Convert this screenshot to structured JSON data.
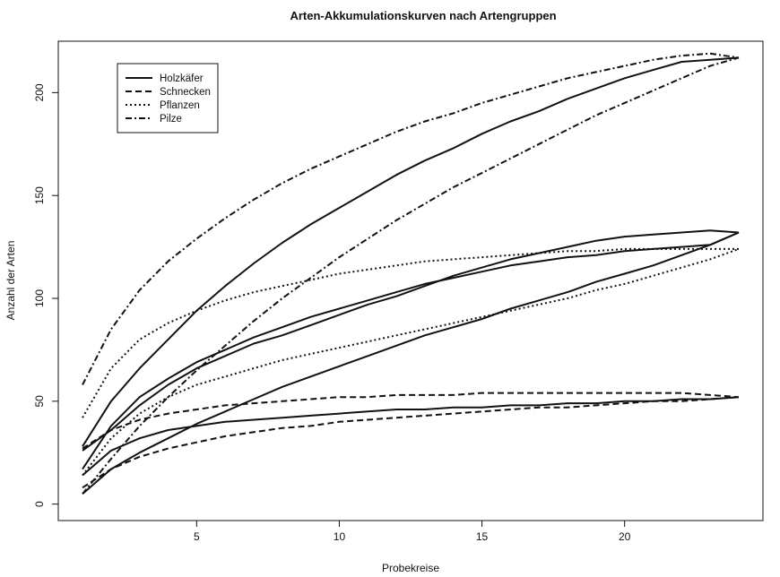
{
  "chart_data": {
    "type": "line",
    "title": "Arten-Akkumulationskurven nach Artengruppen",
    "xlabel": "Probekreise",
    "ylabel": "Anzahl der Arten",
    "xlim": [
      0.15,
      24.85
    ],
    "ylim": [
      -8,
      225
    ],
    "xticks": [
      5,
      10,
      15,
      20
    ],
    "yticks": [
      0,
      50,
      100,
      150,
      200
    ],
    "grid": false,
    "legend_position": "top-left",
    "legend": [
      {
        "label": "Holzkäfer",
        "style": "solid"
      },
      {
        "label": "Schnecken",
        "style": "dashed"
      },
      {
        "label": "Pflanzen",
        "style": "dotted"
      },
      {
        "label": "Pilze",
        "style": "dashdot"
      }
    ],
    "series": [
      {
        "name": "Holzkäfer",
        "style": "solid",
        "x": [
          1,
          2,
          3,
          4,
          5,
          6,
          7,
          8,
          9,
          10,
          11,
          12,
          13,
          14,
          15,
          16,
          17,
          18,
          19,
          20,
          21,
          22,
          23,
          24
        ],
        "values": [
          28,
          50,
          66,
          80,
          94,
          106,
          117,
          127,
          136,
          144,
          152,
          160,
          167,
          173,
          180,
          186,
          191,
          197,
          202,
          207,
          211,
          215,
          216,
          217
        ]
      },
      {
        "name": "",
        "style": "solid",
        "x": [
          1,
          2,
          3,
          4,
          5,
          6,
          7,
          8,
          9,
          10,
          11,
          12,
          13,
          14,
          15,
          16,
          17,
          18,
          19,
          20,
          21,
          22,
          23,
          24
        ],
        "values": [
          17,
          38,
          52,
          61,
          69,
          75,
          81,
          86,
          91,
          95,
          99,
          103,
          107,
          110,
          113,
          116,
          118,
          120,
          121,
          123,
          124,
          125,
          126,
          132
        ]
      },
      {
        "name": "",
        "style": "solid",
        "x": [
          1,
          2,
          3,
          4,
          5,
          6,
          7,
          8,
          9,
          10,
          11,
          12,
          13,
          14,
          15,
          16,
          17,
          18,
          19,
          20,
          21,
          22,
          23,
          24
        ],
        "values": [
          26,
          36,
          48,
          58,
          66,
          72,
          78,
          82,
          87,
          92,
          97,
          101,
          106,
          111,
          115,
          119,
          122,
          125,
          128,
          130,
          131,
          132,
          133,
          132
        ]
      },
      {
        "name": "",
        "style": "solid",
        "x": [
          1,
          2,
          3,
          4,
          5,
          6,
          7,
          8,
          9,
          10,
          11,
          12,
          13,
          14,
          15,
          16,
          17,
          18,
          19,
          20,
          21,
          22,
          23,
          24
        ],
        "values": [
          14,
          26,
          32,
          36,
          38,
          40,
          41,
          42,
          43,
          44,
          45,
          46,
          46,
          47,
          47,
          48,
          48,
          49,
          49,
          50,
          50,
          51,
          51,
          52
        ]
      },
      {
        "name": "",
        "style": "solid",
        "x": [
          1,
          2,
          3,
          4,
          5,
          6,
          7,
          8,
          9,
          10,
          11,
          12,
          13,
          14,
          15,
          16,
          17,
          18,
          19,
          20,
          21,
          22,
          23,
          24
        ],
        "values": [
          5,
          17,
          25,
          32,
          39,
          45,
          51,
          57,
          62,
          67,
          72,
          77,
          82,
          86,
          90,
          95,
          99,
          103,
          108,
          112,
          116,
          121,
          126,
          132
        ]
      },
      {
        "name": "Schnecken",
        "style": "dashed",
        "x": [
          1,
          2,
          3,
          4,
          5,
          6,
          7,
          8,
          9,
          10,
          11,
          12,
          13,
          14,
          15,
          16,
          17,
          18,
          19,
          20,
          21,
          22,
          23,
          24
        ],
        "values": [
          27,
          36,
          41,
          44,
          46,
          48,
          49,
          50,
          51,
          52,
          52,
          53,
          53,
          53,
          54,
          54,
          54,
          54,
          54,
          54,
          54,
          54,
          53,
          52
        ]
      },
      {
        "name": "",
        "style": "dashed",
        "x": [
          1,
          2,
          3,
          4,
          5,
          6,
          7,
          8,
          9,
          10,
          11,
          12,
          13,
          14,
          15,
          16,
          17,
          18,
          19,
          20,
          21,
          22,
          23,
          24
        ],
        "values": [
          8,
          17,
          23,
          27,
          30,
          33,
          35,
          37,
          38,
          40,
          41,
          42,
          43,
          44,
          45,
          46,
          47,
          47,
          48,
          49,
          50,
          50,
          51,
          52
        ]
      },
      {
        "name": "Pflanzen",
        "style": "dotted",
        "x": [
          1,
          2,
          3,
          4,
          5,
          6,
          7,
          8,
          9,
          10,
          11,
          12,
          13,
          14,
          15,
          16,
          17,
          18,
          19,
          20,
          21,
          22,
          23,
          24
        ],
        "values": [
          42,
          66,
          80,
          88,
          94,
          99,
          103,
          106,
          109,
          112,
          114,
          116,
          118,
          119,
          120,
          121,
          122,
          123,
          123,
          124,
          124,
          124,
          124,
          124
        ]
      },
      {
        "name": "",
        "style": "dotted",
        "x": [
          1,
          2,
          3,
          4,
          5,
          6,
          7,
          8,
          9,
          10,
          11,
          12,
          13,
          14,
          15,
          16,
          17,
          18,
          19,
          20,
          21,
          22,
          23,
          24
        ],
        "values": [
          14,
          32,
          44,
          52,
          58,
          62,
          66,
          70,
          73,
          76,
          79,
          82,
          85,
          88,
          91,
          94,
          97,
          100,
          104,
          107,
          111,
          115,
          119,
          124
        ]
      },
      {
        "name": "Pilze",
        "style": "dashdot",
        "x": [
          1,
          2,
          3,
          4,
          5,
          6,
          7,
          8,
          9,
          10,
          11,
          12,
          13,
          14,
          15,
          16,
          17,
          18,
          19,
          20,
          21,
          22,
          23,
          24
        ],
        "values": [
          58,
          85,
          104,
          118,
          129,
          139,
          148,
          156,
          163,
          169,
          175,
          181,
          186,
          190,
          195,
          199,
          203,
          207,
          210,
          213,
          216,
          218,
          219,
          217
        ]
      },
      {
        "name": "",
        "style": "dashdot",
        "x": [
          1,
          2,
          3,
          4,
          5,
          6,
          7,
          8,
          9,
          10,
          11,
          12,
          13,
          14,
          15,
          16,
          17,
          18,
          19,
          20,
          21,
          22,
          23,
          24
        ],
        "values": [
          5,
          22,
          38,
          52,
          65,
          77,
          89,
          100,
          110,
          120,
          129,
          138,
          146,
          154,
          161,
          168,
          175,
          182,
          189,
          195,
          201,
          207,
          213,
          217
        ]
      }
    ]
  }
}
